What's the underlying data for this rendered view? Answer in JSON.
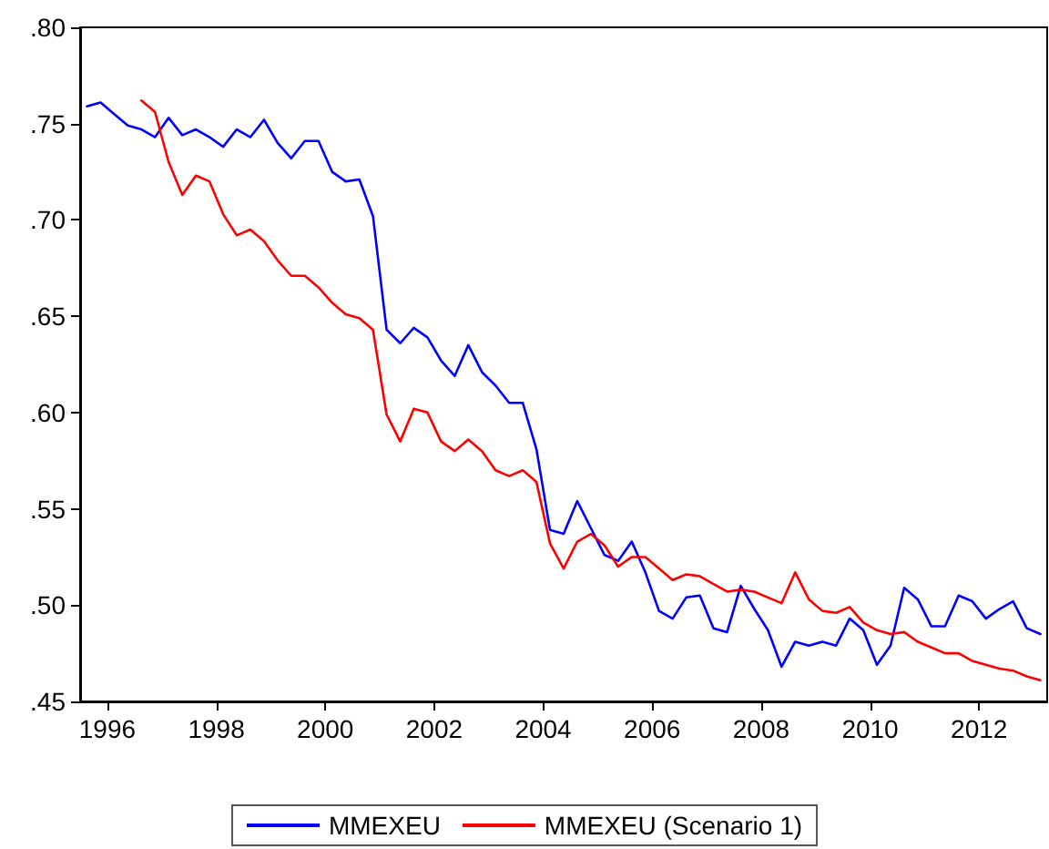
{
  "chart_data": {
    "type": "line",
    "x": [
      1996.125,
      1996.375,
      1996.625,
      1996.875,
      1997.125,
      1997.375,
      1997.625,
      1997.875,
      1998.125,
      1998.375,
      1998.625,
      1998.875,
      1999.125,
      1999.375,
      1999.625,
      1999.875,
      2000.125,
      2000.375,
      2000.625,
      2000.875,
      2001.125,
      2001.375,
      2001.625,
      2001.875,
      2002.125,
      2002.375,
      2002.625,
      2002.875,
      2003.125,
      2003.375,
      2003.625,
      2003.875,
      2004.125,
      2004.375,
      2004.625,
      2004.875,
      2005.125,
      2005.375,
      2005.625,
      2005.875,
      2006.125,
      2006.375,
      2006.625,
      2006.875,
      2007.125,
      2007.375,
      2007.625,
      2007.875,
      2008.125,
      2008.375,
      2008.625,
      2008.875,
      2009.125,
      2009.375,
      2009.625,
      2009.875,
      2010.125,
      2010.375,
      2010.625,
      2010.875,
      2011.125,
      2011.375,
      2011.625,
      2011.875,
      2012.125,
      2012.375,
      2012.625,
      2012.875,
      2013.125,
      2013.375,
      2013.625
    ],
    "series": [
      {
        "name": "MMEXEU",
        "color": "#0000ff",
        "values": [
          0.759,
          0.761,
          0.755,
          0.749,
          0.747,
          0.743,
          0.753,
          0.744,
          0.747,
          0.743,
          0.738,
          0.747,
          0.743,
          0.752,
          0.74,
          0.732,
          0.741,
          0.741,
          0.725,
          0.72,
          0.721,
          0.702,
          0.643,
          0.636,
          0.644,
          0.639,
          0.627,
          0.619,
          0.635,
          0.621,
          0.614,
          0.605,
          0.605,
          0.581,
          0.539,
          0.537,
          0.554,
          0.54,
          0.526,
          0.523,
          0.533,
          0.517,
          0.497,
          0.493,
          0.504,
          0.505,
          0.488,
          0.486,
          0.51,
          0.498,
          0.487,
          0.468,
          0.481,
          0.479,
          0.481,
          0.479,
          0.493,
          0.487,
          0.469,
          0.479,
          0.509,
          0.503,
          0.489,
          0.489,
          0.505,
          0.502,
          0.493,
          0.498,
          0.502,
          0.488,
          0.485
        ]
      },
      {
        "name": "MMEXEU (Scenario 1)",
        "color": "#ff0000",
        "values": [
          null,
          null,
          null,
          null,
          0.762,
          0.756,
          0.73,
          0.713,
          0.723,
          0.72,
          0.703,
          0.692,
          0.695,
          0.689,
          0.679,
          0.671,
          0.671,
          0.665,
          0.657,
          0.651,
          0.649,
          0.643,
          0.599,
          0.585,
          0.602,
          0.6,
          0.585,
          0.58,
          0.586,
          0.58,
          0.57,
          0.567,
          0.57,
          0.564,
          0.532,
          0.519,
          0.533,
          0.537,
          0.531,
          0.52,
          0.525,
          0.525,
          0.519,
          0.513,
          0.516,
          0.515,
          0.511,
          0.507,
          0.508,
          0.507,
          0.504,
          0.501,
          0.517,
          0.503,
          0.497,
          0.496,
          0.499,
          0.491,
          0.487,
          0.485,
          0.486,
          0.481,
          0.478,
          0.475,
          0.475,
          0.471,
          0.469,
          0.467,
          0.466,
          0.463,
          0.461
        ]
      }
    ],
    "xlim": [
      1996,
      2013.75
    ],
    "xticks": [
      {
        "value": 1996.5,
        "label": "1996"
      },
      {
        "value": 1998.5,
        "label": "1998"
      },
      {
        "value": 2000.5,
        "label": "2000"
      },
      {
        "value": 2002.5,
        "label": "2002"
      },
      {
        "value": 2004.5,
        "label": "2004"
      },
      {
        "value": 2006.5,
        "label": "2006"
      },
      {
        "value": 2008.5,
        "label": "2008"
      },
      {
        "value": 2010.5,
        "label": "2010"
      },
      {
        "value": 2012.5,
        "label": "2012"
      }
    ],
    "ylim": [
      0.45,
      0.8
    ],
    "yticks": [
      {
        "value": 0.45,
        "label": ".45"
      },
      {
        "value": 0.5,
        "label": ".50"
      },
      {
        "value": 0.55,
        "label": ".55"
      },
      {
        "value": 0.6,
        "label": ".60"
      },
      {
        "value": 0.65,
        "label": ".65"
      },
      {
        "value": 0.7,
        "label": ".70"
      },
      {
        "value": 0.75,
        "label": ".75"
      },
      {
        "value": 0.8,
        "label": ".80"
      }
    ],
    "grid": false,
    "legend": "bottom",
    "marker": "none",
    "line_style": "solid"
  }
}
